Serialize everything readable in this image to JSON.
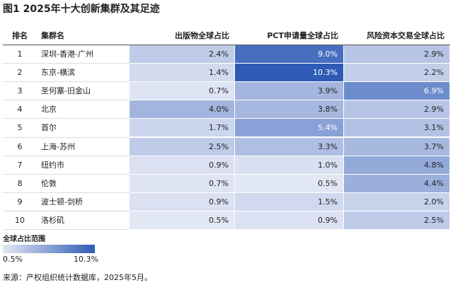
{
  "header": {
    "title": "图1 2025年十大创新集群及其足迹"
  },
  "table": {
    "columns": [
      "排名",
      "集群名",
      "出版物全球占比",
      "PCT申请量全球占比",
      "风险资本交易全球占比"
    ],
    "rows": [
      {
        "rank": "1",
        "name": "深圳-香港-广州",
        "cells": [
          {
            "value": 2.4,
            "label": "2.4%"
          },
          {
            "value": 9.0,
            "label": "9.0%"
          },
          {
            "value": 2.9,
            "label": "2.9%"
          }
        ]
      },
      {
        "rank": "2",
        "name": "东京-横滨",
        "cells": [
          {
            "value": 1.4,
            "label": "1.4%"
          },
          {
            "value": 10.3,
            "label": "10.3%"
          },
          {
            "value": 2.2,
            "label": "2.2%"
          }
        ]
      },
      {
        "rank": "3",
        "name": "圣何塞-旧金山",
        "cells": [
          {
            "value": 0.7,
            "label": "0.7%"
          },
          {
            "value": 3.9,
            "label": "3.9%"
          },
          {
            "value": 6.9,
            "label": "6.9%"
          }
        ]
      },
      {
        "rank": "4",
        "name": "北京",
        "cells": [
          {
            "value": 4.0,
            "label": "4.0%"
          },
          {
            "value": 3.8,
            "label": "3.8%"
          },
          {
            "value": 2.9,
            "label": "2.9%"
          }
        ]
      },
      {
        "rank": "5",
        "name": "首尔",
        "cells": [
          {
            "value": 1.7,
            "label": "1.7%"
          },
          {
            "value": 5.4,
            "label": "5.4%"
          },
          {
            "value": 3.1,
            "label": "3.1%"
          }
        ]
      },
      {
        "rank": "6",
        "name": "上海-苏州",
        "cells": [
          {
            "value": 2.5,
            "label": "2.5%"
          },
          {
            "value": 3.3,
            "label": "3.3%"
          },
          {
            "value": 3.7,
            "label": "3.7%"
          }
        ]
      },
      {
        "rank": "7",
        "name": "纽约市",
        "cells": [
          {
            "value": 0.9,
            "label": "0.9%"
          },
          {
            "value": 1.0,
            "label": "1.0%"
          },
          {
            "value": 4.8,
            "label": "4.8%"
          }
        ]
      },
      {
        "rank": "8",
        "name": "伦敦",
        "cells": [
          {
            "value": 0.7,
            "label": "0.7%"
          },
          {
            "value": 0.5,
            "label": "0.5%"
          },
          {
            "value": 4.4,
            "label": "4.4%"
          }
        ]
      },
      {
        "rank": "9",
        "name": "波士顿-剑桥",
        "cells": [
          {
            "value": 0.9,
            "label": "0.9%"
          },
          {
            "value": 1.5,
            "label": "1.5%"
          },
          {
            "value": 2.0,
            "label": "2.0%"
          }
        ]
      },
      {
        "rank": "10",
        "name": "洛杉矶",
        "cells": [
          {
            "value": 0.5,
            "label": "0.5%"
          },
          {
            "value": 0.9,
            "label": "0.9%"
          },
          {
            "value": 2.5,
            "label": "2.5%"
          }
        ]
      }
    ]
  },
  "legend": {
    "title": "全球占比范围",
    "min": {
      "value": 0.5,
      "label": "0.5%"
    },
    "max": {
      "value": 10.3,
      "label": "10.3%"
    }
  },
  "footer": {
    "source": "来源：产权组织统计数据库，2025年5月。"
  }
}
